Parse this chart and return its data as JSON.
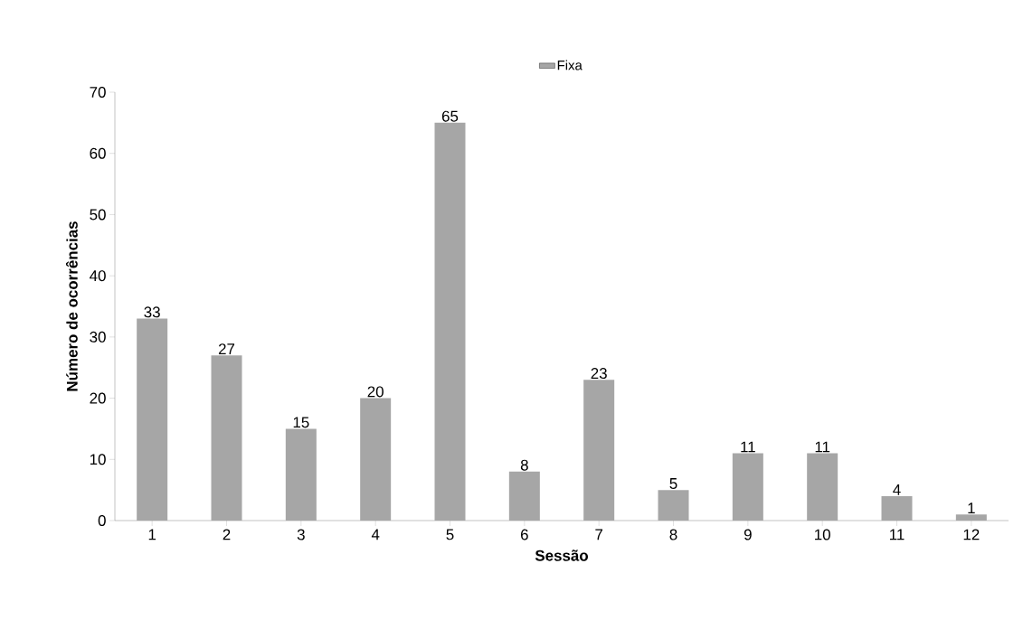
{
  "chart_data": {
    "type": "bar",
    "xlabel": "Sessão",
    "ylabel": "Número de ocorrências",
    "categories": [
      "1",
      "2",
      "3",
      "4",
      "5",
      "6",
      "7",
      "8",
      "9",
      "10",
      "11",
      "12"
    ],
    "series": [
      {
        "name": "Fixa",
        "color": "#a6a6a6",
        "values": [
          33,
          27,
          15,
          20,
          65,
          8,
          23,
          5,
          11,
          11,
          4,
          1
        ]
      }
    ],
    "ylim": [
      0,
      70
    ],
    "yticks": [
      0,
      10,
      20,
      30,
      40,
      50,
      60,
      70
    ],
    "data_labels": true,
    "legend": "top",
    "grid": false
  }
}
